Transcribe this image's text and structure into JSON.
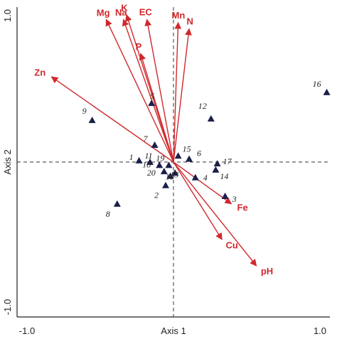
{
  "chart_data": {
    "type": "scatter",
    "xlabel": "Axis 1",
    "ylabel": "Axis 2",
    "xlim": [
      -1.0,
      1.0
    ],
    "ylim": [
      -1.0,
      1.0
    ],
    "xticks": [
      "-1.0",
      "1.0"
    ],
    "yticks": [
      "-1.0",
      "1.0"
    ],
    "reference_lines": {
      "x": 0,
      "y": 0,
      "style": "dashed"
    },
    "grid": false,
    "colors": {
      "points": "#1a1f4a",
      "vectors": "#d0282c",
      "axes": "#222222"
    },
    "points": [
      {
        "label": "1",
        "x": -0.22,
        "y": 0.01
      },
      {
        "label": "2",
        "x": -0.05,
        "y": -0.15
      },
      {
        "label": "3",
        "x": 0.33,
        "y": -0.22
      },
      {
        "label": "4",
        "x": 0.14,
        "y": -0.1
      },
      {
        "label": "5",
        "x": -0.14,
        "y": 0.38
      },
      {
        "label": "6",
        "x": 0.1,
        "y": 0.02
      },
      {
        "label": "7",
        "x": -0.12,
        "y": 0.11
      },
      {
        "label": "8",
        "x": -0.36,
        "y": -0.27
      },
      {
        "label": "9",
        "x": -0.52,
        "y": 0.27
      },
      {
        "label": "10",
        "x": -0.02,
        "y": -0.09
      },
      {
        "label": "11",
        "x": -0.15,
        "y": 0.0
      },
      {
        "label": "12",
        "x": 0.24,
        "y": 0.28
      },
      {
        "label": "13",
        "x": 0.01,
        "y": -0.07
      },
      {
        "label": "14",
        "x": 0.27,
        "y": -0.05
      },
      {
        "label": "15",
        "x": 0.03,
        "y": 0.04
      },
      {
        "label": "16",
        "x": 0.98,
        "y": 0.45
      },
      {
        "label": "17",
        "x": 0.28,
        "y": -0.01
      },
      {
        "label": "18",
        "x": -0.09,
        "y": -0.02
      },
      {
        "label": "19",
        "x": -0.03,
        "y": -0.02
      },
      {
        "label": "20",
        "x": -0.06,
        "y": -0.06
      }
    ],
    "vectors": [
      {
        "label": "Mg",
        "x": -0.43,
        "y": 0.92
      },
      {
        "label": "Na",
        "x": -0.32,
        "y": 0.92
      },
      {
        "label": "K",
        "x": -0.3,
        "y": 0.95
      },
      {
        "label": "EC",
        "x": -0.17,
        "y": 0.92
      },
      {
        "label": "P",
        "x": -0.21,
        "y": 0.7
      },
      {
        "label": "Mn",
        "x": 0.03,
        "y": 0.9
      },
      {
        "label": "N",
        "x": 0.1,
        "y": 0.86
      },
      {
        "label": "Zn",
        "x": -0.78,
        "y": 0.55
      },
      {
        "label": "Fe",
        "x": 0.37,
        "y": -0.27
      },
      {
        "label": "Cu",
        "x": 0.31,
        "y": -0.5
      },
      {
        "label": "pH",
        "x": 0.53,
        "y": -0.67
      }
    ]
  }
}
